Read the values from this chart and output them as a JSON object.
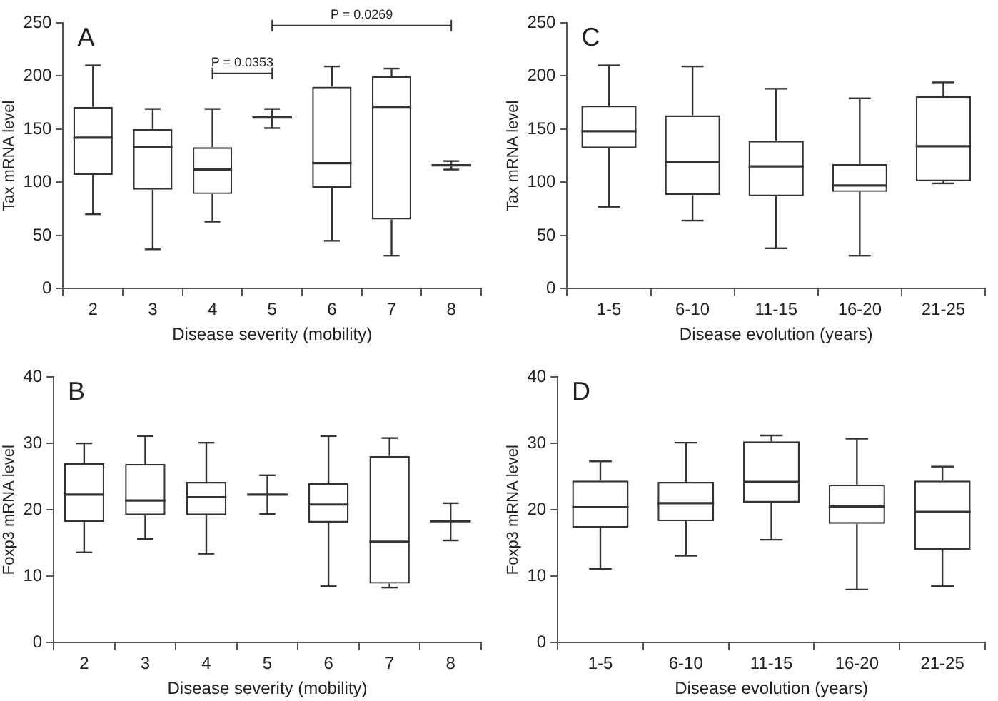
{
  "chart_data": [
    {
      "type": "box",
      "title": "A",
      "xlabel": "Disease severity (mobility)",
      "ylabel": "Tax mRNA level",
      "categories": [
        "2",
        "3",
        "4",
        "5",
        "6",
        "7",
        "8"
      ],
      "ylim": [
        0,
        250
      ],
      "yticks": [
        0,
        50,
        100,
        150,
        200,
        250
      ],
      "color": "#333333",
      "boxes": [
        {
          "low": 70,
          "q1": 107,
          "median": 142,
          "q3": 171,
          "high": 210
        },
        {
          "low": 37,
          "q1": 93,
          "median": 133,
          "q3": 150,
          "high": 169
        },
        {
          "low": 63,
          "q1": 89,
          "median": 112,
          "q3": 133,
          "high": 169
        },
        {
          "low": 151,
          "q1": 160,
          "median": 161,
          "q3": 162,
          "high": 169
        },
        {
          "low": 45,
          "q1": 95,
          "median": 118,
          "q3": 190,
          "high": 209
        },
        {
          "low": 31,
          "q1": 65,
          "median": 171,
          "q3": 200,
          "high": 207
        },
        {
          "low": 112,
          "q1": 115,
          "median": 116,
          "q3": 117,
          "high": 120
        }
      ],
      "annotations": [
        "P = 0.0353",
        "P = 0.0269"
      ]
    },
    {
      "type": "box",
      "title": "C",
      "xlabel": "Disease evolution (years)",
      "ylabel": "Tax mRNA level",
      "categories": [
        "1-5",
        "6-10",
        "11-15",
        "16-20",
        "21-25"
      ],
      "ylim": [
        0,
        250
      ],
      "yticks": [
        0,
        50,
        100,
        150,
        200,
        250
      ],
      "color": "#333333",
      "boxes": [
        {
          "low": 77,
          "q1": 132,
          "median": 148,
          "q3": 172,
          "high": 210
        },
        {
          "low": 64,
          "q1": 88,
          "median": 119,
          "q3": 163,
          "high": 209
        },
        {
          "low": 38,
          "q1": 87,
          "median": 115,
          "q3": 139,
          "high": 188
        },
        {
          "low": 31,
          "q1": 91,
          "median": 97,
          "q3": 117,
          "high": 179
        },
        {
          "low": 99,
          "q1": 101,
          "median": 134,
          "q3": 181,
          "high": 194
        }
      ]
    },
    {
      "type": "box",
      "title": "B",
      "xlabel": "Disease severity (mobility)",
      "ylabel": "Foxp3 mRNA level",
      "categories": [
        "2",
        "3",
        "4",
        "5",
        "6",
        "7",
        "8"
      ],
      "ylim": [
        0,
        40
      ],
      "yticks": [
        0,
        10,
        20,
        30,
        40
      ],
      "color": "#333333",
      "boxes": [
        {
          "low": 13.6,
          "q1": 18.2,
          "median": 22.3,
          "q3": 27,
          "high": 30
        },
        {
          "low": 15.6,
          "q1": 19.2,
          "median": 21.4,
          "q3": 26.9,
          "high": 31.1
        },
        {
          "low": 13.4,
          "q1": 19.2,
          "median": 21.9,
          "q3": 24.2,
          "high": 30.1
        },
        {
          "low": 19.4,
          "q1": 22.2,
          "median": 22.3,
          "q3": 22.4,
          "high": 25.2
        },
        {
          "low": 8.5,
          "q1": 18.1,
          "median": 20.8,
          "q3": 24,
          "high": 31.1
        },
        {
          "low": 8.3,
          "q1": 8.9,
          "median": 15.2,
          "q3": 28.1,
          "high": 30.8
        },
        {
          "low": 15.4,
          "q1": 18.2,
          "median": 18.3,
          "q3": 18.4,
          "high": 21
        }
      ]
    },
    {
      "type": "box",
      "title": "D",
      "xlabel": "Disease evolution (years)",
      "ylabel": "Foxp3 mRNA level",
      "categories": [
        "1-5",
        "6-10",
        "11-15",
        "16-20",
        "21-25"
      ],
      "ylim": [
        0,
        40
      ],
      "yticks": [
        0,
        10,
        20,
        30,
        40
      ],
      "color": "#333333",
      "boxes": [
        {
          "low": 11.1,
          "q1": 17.3,
          "median": 20.4,
          "q3": 24.4,
          "high": 27.3
        },
        {
          "low": 13.1,
          "q1": 18.3,
          "median": 21,
          "q3": 24.2,
          "high": 30.1
        },
        {
          "low": 15.5,
          "q1": 21.1,
          "median": 24.2,
          "q3": 30.3,
          "high": 31.2
        },
        {
          "low": 8,
          "q1": 17.9,
          "median": 20.5,
          "q3": 23.8,
          "high": 30.7
        },
        {
          "low": 8.5,
          "q1": 14,
          "median": 19.7,
          "q3": 24.4,
          "high": 26.5
        }
      ]
    }
  ]
}
